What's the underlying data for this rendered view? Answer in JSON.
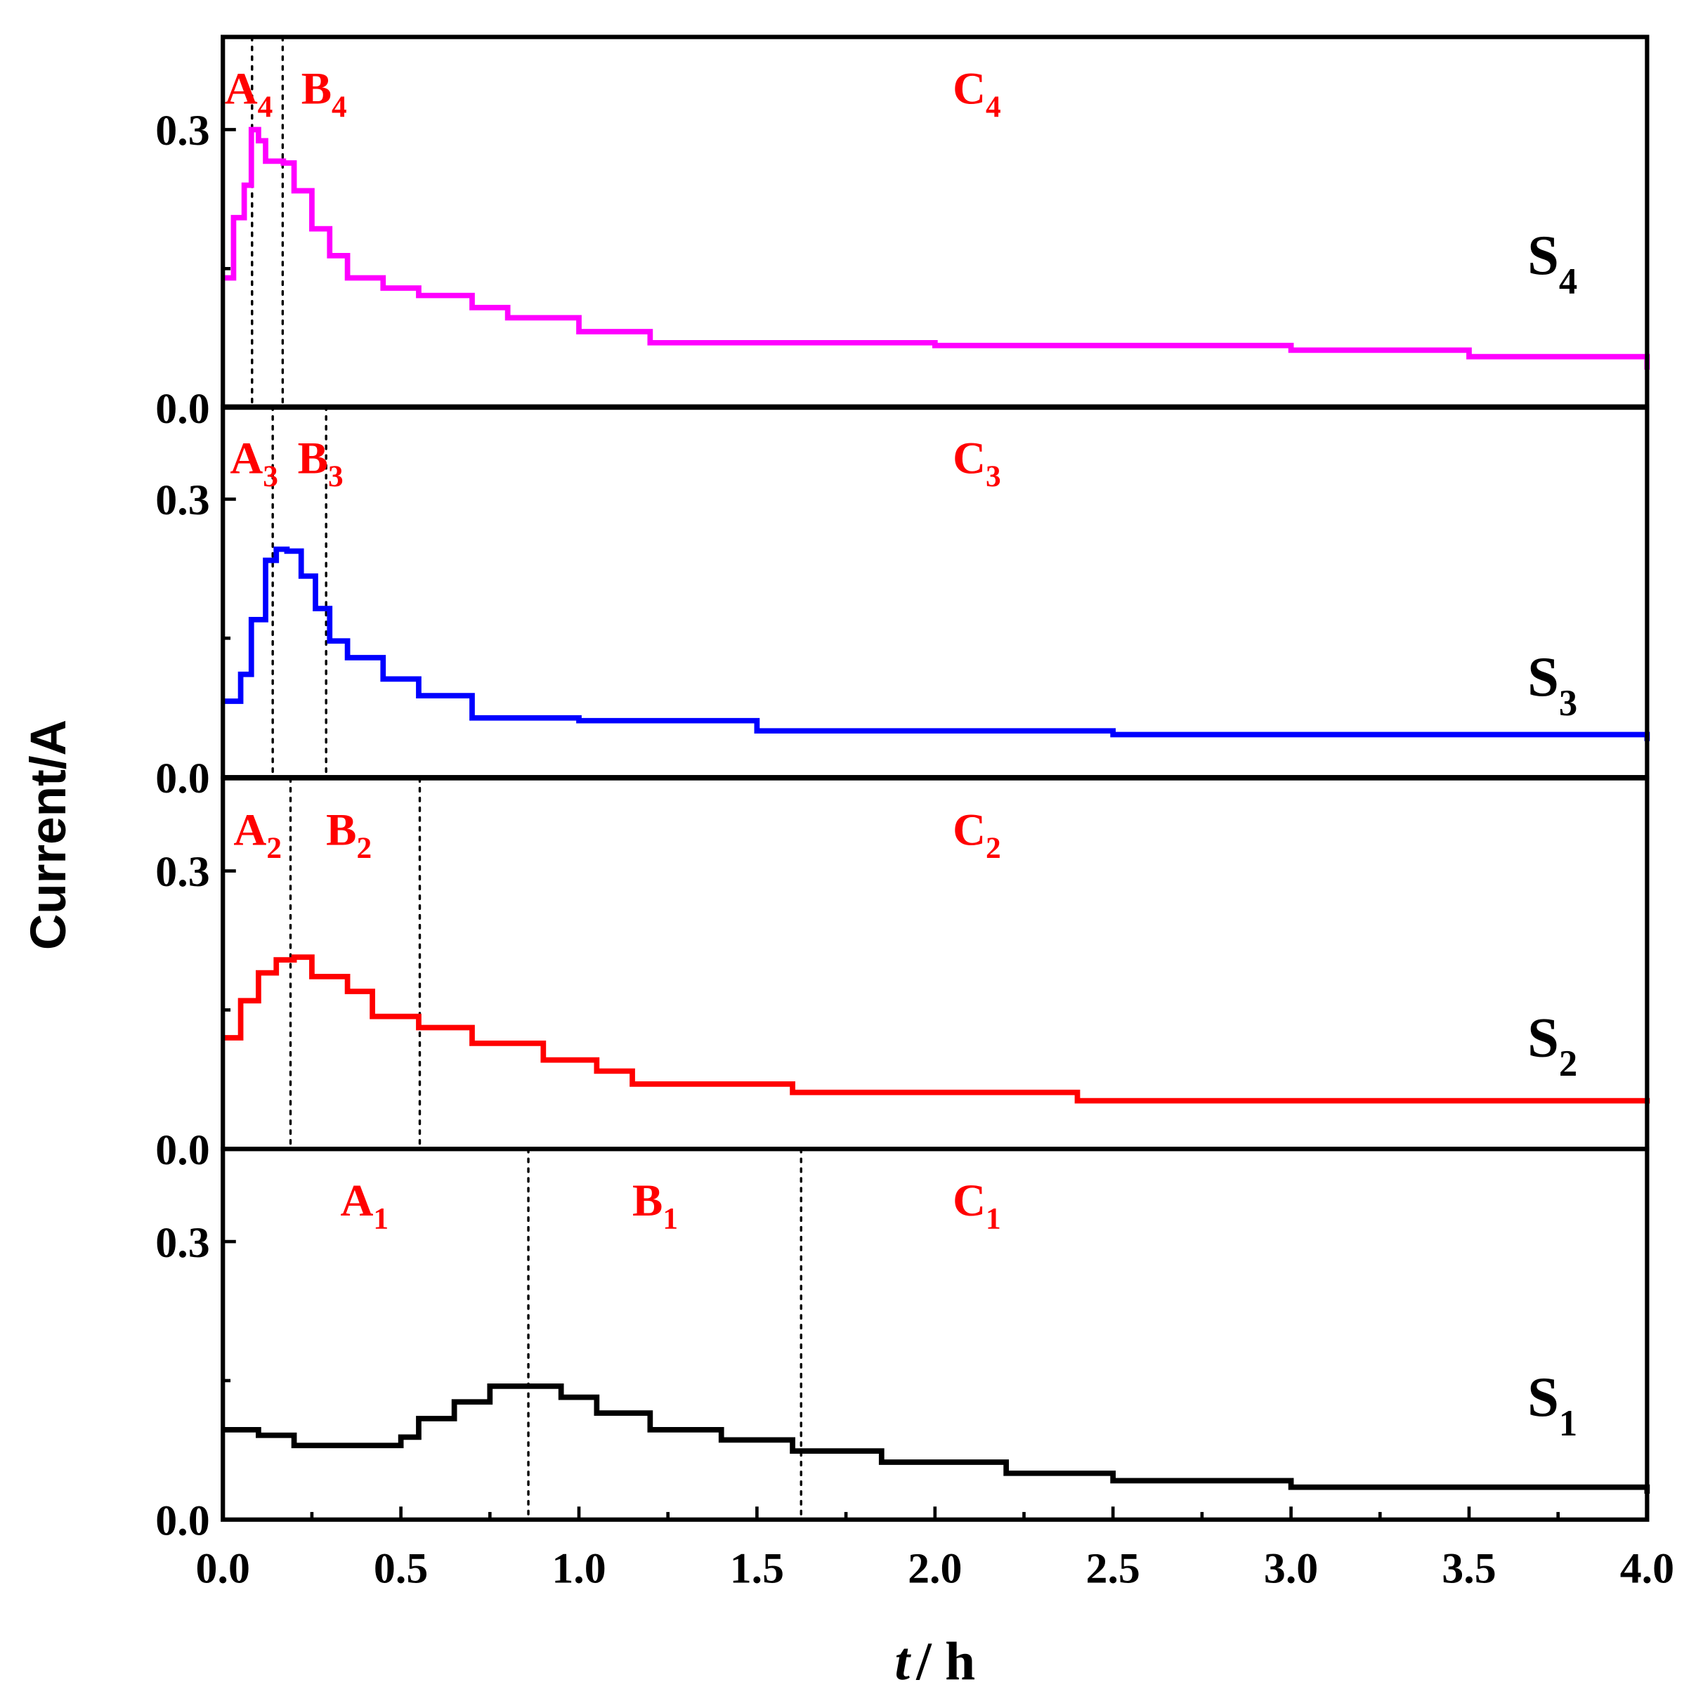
{
  "chart_data": {
    "type": "line",
    "xlabel_italic": "t",
    "xlabel_rest": "/ h",
    "ylabel": "Current/A",
    "xlim": [
      0,
      4.0
    ],
    "ylim": [
      0,
      0.4
    ],
    "x_ticks": [
      "0.0",
      "0.5",
      "1.0",
      "1.5",
      "2.0",
      "2.5",
      "3.0",
      "3.5",
      "4.0"
    ],
    "y_ticks": [
      "0.0",
      "0.3"
    ],
    "grid": false,
    "divider_color": "#000000",
    "panels": [
      {
        "name": "S",
        "sub": "4",
        "color": "#ff00ff",
        "dividers": [
          0.082,
          0.168
        ],
        "regions": [
          {
            "l": "A",
            "s": "4"
          },
          {
            "l": "B",
            "s": "4"
          },
          {
            "l": "C",
            "s": "4"
          }
        ],
        "x": [
          0,
          0.03,
          0.06,
          0.08,
          0.1,
          0.12,
          0.17,
          0.2,
          0.25,
          0.3,
          0.35,
          0.45,
          0.55,
          0.7,
          0.8,
          1.0,
          1.2,
          2.0,
          3.0,
          3.5,
          4.0
        ],
        "y": [
          0.14,
          0.205,
          0.24,
          0.3,
          0.288,
          0.266,
          0.264,
          0.234,
          0.193,
          0.164,
          0.14,
          0.129,
          0.121,
          0.108,
          0.097,
          0.082,
          0.07,
          0.067,
          0.062,
          0.055,
          0.041
        ]
      },
      {
        "name": "S",
        "sub": "3",
        "color": "#0000ff",
        "dividers": [
          0.14,
          0.29
        ],
        "regions": [
          {
            "l": "A",
            "s": "3"
          },
          {
            "l": "B",
            "s": "3"
          },
          {
            "l": "C",
            "s": "3"
          }
        ],
        "x": [
          0,
          0.05,
          0.08,
          0.12,
          0.15,
          0.18,
          0.22,
          0.26,
          0.3,
          0.35,
          0.45,
          0.55,
          0.7,
          1.0,
          1.5,
          2.5,
          4.0
        ],
        "y": [
          0.082,
          0.111,
          0.17,
          0.234,
          0.246,
          0.244,
          0.217,
          0.182,
          0.147,
          0.129,
          0.106,
          0.088,
          0.064,
          0.061,
          0.05,
          0.046,
          0.039
        ]
      },
      {
        "name": "S",
        "sub": "2",
        "color": "#ff0000",
        "dividers": [
          0.19,
          0.553
        ],
        "regions": [
          {
            "l": "A",
            "s": "2"
          },
          {
            "l": "B",
            "s": "2"
          },
          {
            "l": "C",
            "s": "2"
          }
        ],
        "x": [
          0,
          0.05,
          0.1,
          0.15,
          0.2,
          0.25,
          0.35,
          0.42,
          0.55,
          0.7,
          0.9,
          1.05,
          1.15,
          1.6,
          2.4,
          4.0
        ],
        "y": [
          0.12,
          0.16,
          0.19,
          0.204,
          0.207,
          0.186,
          0.17,
          0.143,
          0.131,
          0.114,
          0.096,
          0.084,
          0.07,
          0.061,
          0.052,
          0.049
        ]
      },
      {
        "name": "S",
        "sub": "1",
        "color": "#000000",
        "dividers": [
          0.858,
          1.624
        ],
        "regions": [
          {
            "l": "A",
            "s": "1"
          },
          {
            "l": "B",
            "s": "1"
          },
          {
            "l": "C",
            "s": "1"
          }
        ],
        "x": [
          0,
          0.1,
          0.2,
          0.5,
          0.55,
          0.65,
          0.75,
          0.9,
          0.95,
          1.05,
          1.2,
          1.4,
          1.6,
          1.85,
          2.2,
          2.5,
          3.0,
          4.0
        ],
        "y": [
          0.097,
          0.091,
          0.08,
          0.089,
          0.109,
          0.127,
          0.144,
          0.144,
          0.132,
          0.115,
          0.097,
          0.086,
          0.074,
          0.062,
          0.05,
          0.042,
          0.035,
          0.028
        ]
      }
    ]
  }
}
